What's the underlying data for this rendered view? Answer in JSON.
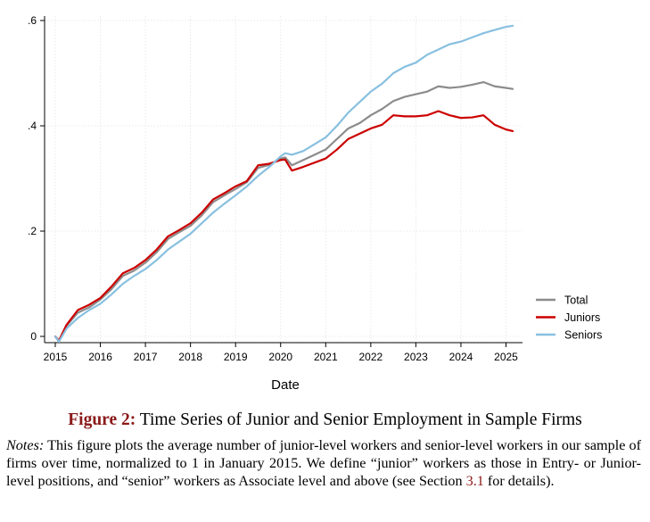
{
  "chart_data": {
    "type": "line",
    "title": "",
    "xlabel": "Date",
    "ylabel": "",
    "xlim": [
      2015,
      2025.2
    ],
    "ylim": [
      0,
      0.6
    ],
    "x_ticks": [
      "2015",
      "2016",
      "2017",
      "2018",
      "2019",
      "2020",
      "2021",
      "2022",
      "2023",
      "2024",
      "2025"
    ],
    "y_ticks": [
      "0",
      ".2",
      ".4",
      ".6"
    ],
    "grid": true,
    "legend_position": "right",
    "series": [
      {
        "name": "Total",
        "color": "#8c8c8c",
        "points": [
          [
            2015,
            0
          ],
          [
            2015.08,
            -0.01
          ],
          [
            2015.25,
            0.02
          ],
          [
            2015.5,
            0.045
          ],
          [
            2015.75,
            0.055
          ],
          [
            2016,
            0.07
          ],
          [
            2016.25,
            0.09
          ],
          [
            2016.5,
            0.115
          ],
          [
            2016.75,
            0.125
          ],
          [
            2017,
            0.14
          ],
          [
            2017.25,
            0.16
          ],
          [
            2017.5,
            0.185
          ],
          [
            2017.75,
            0.198
          ],
          [
            2018,
            0.21
          ],
          [
            2018.25,
            0.23
          ],
          [
            2018.5,
            0.255
          ],
          [
            2018.75,
            0.268
          ],
          [
            2019,
            0.28
          ],
          [
            2019.25,
            0.293
          ],
          [
            2019.5,
            0.32
          ],
          [
            2019.75,
            0.326
          ],
          [
            2020,
            0.338
          ],
          [
            2020.1,
            0.34
          ],
          [
            2020.25,
            0.325
          ],
          [
            2020.5,
            0.335
          ],
          [
            2020.75,
            0.345
          ],
          [
            2021,
            0.355
          ],
          [
            2021.25,
            0.375
          ],
          [
            2021.5,
            0.395
          ],
          [
            2021.75,
            0.405
          ],
          [
            2022,
            0.42
          ],
          [
            2022.25,
            0.432
          ],
          [
            2022.5,
            0.447
          ],
          [
            2022.75,
            0.455
          ],
          [
            2023,
            0.46
          ],
          [
            2023.25,
            0.465
          ],
          [
            2023.5,
            0.475
          ],
          [
            2023.75,
            0.472
          ],
          [
            2024,
            0.474
          ],
          [
            2024.25,
            0.478
          ],
          [
            2024.5,
            0.483
          ],
          [
            2024.75,
            0.475
          ],
          [
            2025,
            0.472
          ],
          [
            2025.15,
            0.47
          ]
        ]
      },
      {
        "name": "Juniors",
        "color": "#cc0000",
        "points": [
          [
            2015,
            0
          ],
          [
            2015.08,
            -0.008
          ],
          [
            2015.25,
            0.022
          ],
          [
            2015.5,
            0.05
          ],
          [
            2015.75,
            0.06
          ],
          [
            2016,
            0.073
          ],
          [
            2016.25,
            0.095
          ],
          [
            2016.5,
            0.12
          ],
          [
            2016.75,
            0.13
          ],
          [
            2017,
            0.145
          ],
          [
            2017.25,
            0.165
          ],
          [
            2017.5,
            0.19
          ],
          [
            2017.75,
            0.202
          ],
          [
            2018,
            0.215
          ],
          [
            2018.25,
            0.235
          ],
          [
            2018.5,
            0.26
          ],
          [
            2018.75,
            0.272
          ],
          [
            2019,
            0.285
          ],
          [
            2019.25,
            0.295
          ],
          [
            2019.5,
            0.325
          ],
          [
            2019.75,
            0.328
          ],
          [
            2020,
            0.335
          ],
          [
            2020.1,
            0.336
          ],
          [
            2020.25,
            0.315
          ],
          [
            2020.5,
            0.322
          ],
          [
            2020.75,
            0.33
          ],
          [
            2021,
            0.338
          ],
          [
            2021.25,
            0.355
          ],
          [
            2021.5,
            0.375
          ],
          [
            2021.75,
            0.385
          ],
          [
            2022,
            0.395
          ],
          [
            2022.25,
            0.402
          ],
          [
            2022.5,
            0.42
          ],
          [
            2022.75,
            0.418
          ],
          [
            2023,
            0.418
          ],
          [
            2023.25,
            0.42
          ],
          [
            2023.5,
            0.428
          ],
          [
            2023.75,
            0.42
          ],
          [
            2024,
            0.415
          ],
          [
            2024.25,
            0.416
          ],
          [
            2024.5,
            0.42
          ],
          [
            2024.75,
            0.402
          ],
          [
            2025,
            0.393
          ],
          [
            2025.15,
            0.39
          ]
        ]
      },
      {
        "name": "Seniors",
        "color": "#88c0e0",
        "points": [
          [
            2015,
            0
          ],
          [
            2015.08,
            -0.01
          ],
          [
            2015.25,
            0.015
          ],
          [
            2015.5,
            0.035
          ],
          [
            2015.75,
            0.05
          ],
          [
            2016,
            0.062
          ],
          [
            2016.25,
            0.08
          ],
          [
            2016.5,
            0.1
          ],
          [
            2016.75,
            0.115
          ],
          [
            2017,
            0.128
          ],
          [
            2017.25,
            0.145
          ],
          [
            2017.5,
            0.165
          ],
          [
            2017.75,
            0.18
          ],
          [
            2018,
            0.195
          ],
          [
            2018.25,
            0.215
          ],
          [
            2018.5,
            0.235
          ],
          [
            2018.75,
            0.252
          ],
          [
            2019,
            0.268
          ],
          [
            2019.25,
            0.285
          ],
          [
            2019.5,
            0.305
          ],
          [
            2019.75,
            0.322
          ],
          [
            2020,
            0.342
          ],
          [
            2020.1,
            0.348
          ],
          [
            2020.25,
            0.345
          ],
          [
            2020.5,
            0.352
          ],
          [
            2020.75,
            0.365
          ],
          [
            2021,
            0.378
          ],
          [
            2021.25,
            0.4
          ],
          [
            2021.5,
            0.425
          ],
          [
            2021.75,
            0.445
          ],
          [
            2022,
            0.465
          ],
          [
            2022.25,
            0.48
          ],
          [
            2022.5,
            0.5
          ],
          [
            2022.75,
            0.512
          ],
          [
            2023,
            0.52
          ],
          [
            2023.25,
            0.535
          ],
          [
            2023.5,
            0.545
          ],
          [
            2023.75,
            0.555
          ],
          [
            2024,
            0.56
          ],
          [
            2024.25,
            0.568
          ],
          [
            2024.5,
            0.576
          ],
          [
            2024.75,
            0.582
          ],
          [
            2025,
            0.588
          ],
          [
            2025.15,
            0.59
          ]
        ]
      }
    ]
  },
  "caption": {
    "label": "Figure 2:",
    "text": "Time Series of Junior and Senior Employment in Sample Firms"
  },
  "notes": {
    "label": "Notes:",
    "text_before_ref": "This figure plots the average number of junior-level workers and senior-level workers in our sample of firms over time, normalized to 1 in January 2015. We define “junior” workers as those in Entry- or Junior-level positions, and “senior” workers as Associate level and above (see Section",
    "ref": "3.1",
    "text_after_ref": "for details)."
  }
}
